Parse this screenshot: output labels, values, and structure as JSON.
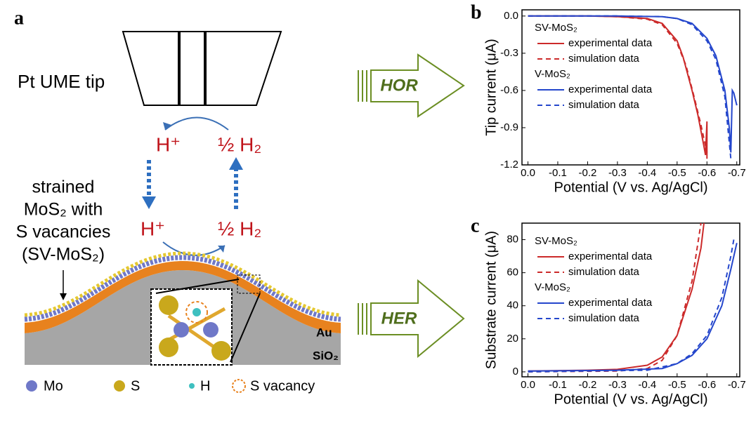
{
  "diagram": {
    "panel_label": "a",
    "tip_label": "Pt UME tip",
    "h_plus_top": "H⁺",
    "half_h2_top": "½ H₂",
    "h_plus_bottom": "H⁺",
    "half_h2_bottom": "½ H₂",
    "sample_label": [
      "strained",
      "MoS₂ with",
      "S vacancies",
      "(SV-MoS₂)"
    ],
    "au": "Au",
    "sio2": "SiO₂",
    "legend": [
      "Mo",
      "S",
      "H",
      "S vacancy"
    ],
    "arrows": [
      "HOR",
      "HER"
    ]
  },
  "chart_data": [
    {
      "type": "line",
      "panel_label": "b",
      "x_label": "Potential (V vs. Ag/AgCl)",
      "y_label": "Tip current (μA)",
      "xlim": [
        0.02,
        -0.71
      ],
      "ylim": [
        -1.2,
        0.05
      ],
      "xticks": [
        {
          "value": 0,
          "label": "0.0"
        },
        -0.1,
        -0.2,
        -0.3,
        -0.4,
        -0.5,
        -0.6,
        -0.7
      ],
      "yticks": [
        {
          "value": 0,
          "label": "0.0"
        },
        -0.3,
        -0.6,
        -0.9,
        -1.2
      ],
      "legend_groups": [
        "SV-MoS₂",
        "V-MoS₂"
      ],
      "series": [
        {
          "name": "experimental data",
          "color": "#cc2a2a",
          "dashed": false,
          "x": [
            0,
            -0.1,
            -0.2,
            -0.3,
            -0.4,
            -0.45,
            -0.5,
            -0.52,
            -0.55,
            -0.57,
            -0.59,
            -0.595,
            -0.6,
            -0.6
          ],
          "values": [
            0,
            0,
            0,
            -0.005,
            -0.02,
            -0.06,
            -0.2,
            -0.33,
            -0.6,
            -0.8,
            -1.05,
            -1.12,
            -0.85,
            -1.15
          ]
        },
        {
          "name": "simulation data",
          "color": "#cc2a2a",
          "dashed": true,
          "x": [
            0,
            -0.2,
            -0.3,
            -0.4,
            -0.45,
            -0.5,
            -0.53,
            -0.56,
            -0.58,
            -0.6
          ],
          "values": [
            0,
            0,
            -0.005,
            -0.025,
            -0.07,
            -0.22,
            -0.4,
            -0.68,
            -0.88,
            -1.1
          ]
        },
        {
          "name": "experimental data",
          "color": "#2446cc",
          "dashed": false,
          "x": [
            0,
            -0.3,
            -0.45,
            -0.5,
            -0.55,
            -0.6,
            -0.63,
            -0.66,
            -0.675,
            -0.68,
            -0.685,
            -0.69,
            -0.7
          ],
          "values": [
            0,
            0,
            -0.005,
            -0.02,
            -0.06,
            -0.18,
            -0.32,
            -0.6,
            -0.9,
            -1.1,
            -0.6,
            -0.62,
            -0.72
          ]
        },
        {
          "name": "simulation data",
          "color": "#2446cc",
          "dashed": true,
          "x": [
            0,
            -0.3,
            -0.45,
            -0.5,
            -0.55,
            -0.6,
            -0.63,
            -0.66,
            -0.68
          ],
          "values": [
            0,
            0,
            -0.005,
            -0.02,
            -0.07,
            -0.2,
            -0.35,
            -0.65,
            -1.15
          ]
        }
      ]
    },
    {
      "type": "line",
      "panel_label": "c",
      "x_label": "Potential (V vs. Ag/AgCl)",
      "y_label": "Substrate current (μA)",
      "xlim": [
        0.02,
        -0.71
      ],
      "ylim": [
        -3,
        90
      ],
      "xticks": [
        {
          "value": 0,
          "label": "0.0"
        },
        -0.1,
        -0.2,
        -0.3,
        -0.4,
        -0.5,
        -0.6,
        -0.7
      ],
      "yticks": [
        0,
        20,
        40,
        60,
        80
      ],
      "legend_groups": [
        "SV-MoS₂",
        "V-MoS₂"
      ],
      "series": [
        {
          "name": "experimental data",
          "color": "#cc2a2a",
          "dashed": false,
          "x": [
            0,
            -0.2,
            -0.3,
            -0.4,
            -0.45,
            -0.5,
            -0.55,
            -0.58,
            -0.59
          ],
          "values": [
            0.5,
            1,
            1.5,
            4,
            9,
            22,
            50,
            75,
            90
          ]
        },
        {
          "name": "simulation data",
          "color": "#cc2a2a",
          "dashed": true,
          "x": [
            0,
            -0.3,
            -0.4,
            -0.45,
            -0.5,
            -0.55,
            -0.58
          ],
          "values": [
            0,
            0.5,
            2,
            7,
            22,
            55,
            90
          ]
        },
        {
          "name": "experimental data",
          "color": "#2446cc",
          "dashed": false,
          "x": [
            0,
            -0.3,
            -0.45,
            -0.5,
            -0.55,
            -0.6,
            -0.65,
            -0.68,
            -0.7
          ],
          "values": [
            0.5,
            1,
            2,
            5,
            10,
            20,
            40,
            62,
            78
          ]
        },
        {
          "name": "simulation data",
          "color": "#2446cc",
          "dashed": true,
          "x": [
            0,
            -0.4,
            -0.5,
            -0.55,
            -0.6,
            -0.65,
            -0.68,
            -0.69
          ],
          "values": [
            0,
            1,
            5,
            11,
            22,
            45,
            70,
            80
          ]
        }
      ]
    }
  ]
}
